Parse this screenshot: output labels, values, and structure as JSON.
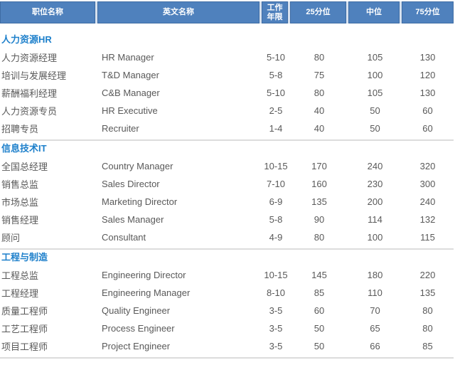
{
  "colors": {
    "header-bg": "#4F81BD",
    "header-border": "#3E6CA4",
    "header-gap": "#D6E1EF",
    "section-title": "#1E80CB",
    "body-text": "#595959",
    "divider": "#DCDCDC"
  },
  "header": {
    "columns": [
      "职位名称",
      "英文名称",
      "工作\n年限",
      "25分位",
      "中位",
      "75分位"
    ]
  },
  "sections": [
    {
      "title": "人力资源HR",
      "rows": [
        [
          "人力资源经理",
          "HR Manager",
          "5-10",
          "80",
          "105",
          "130"
        ],
        [
          "培训与发展经理",
          "T&D Manager",
          "5-8",
          "75",
          "100",
          "120"
        ],
        [
          "薪酬福利经理",
          "C&B Manager",
          "5-10",
          "80",
          "105",
          "130"
        ],
        [
          "人力资源专员",
          "HR Executive",
          "2-5",
          "40",
          "50",
          "60"
        ],
        [
          "招聘专员",
          "Recruiter",
          "1-4",
          "40",
          "50",
          "60"
        ]
      ]
    },
    {
      "title": "信息技术IT",
      "rows": [
        [
          "全国总经理",
          "Country Manager",
          "10-15",
          "170",
          "240",
          "320"
        ],
        [
          "销售总监",
          "Sales Director",
          "7-10",
          "160",
          "230",
          "300"
        ],
        [
          "市场总监",
          "Marketing Director",
          "6-9",
          "135",
          "200",
          "240"
        ],
        [
          "销售经理",
          "Sales Manager",
          "5-8",
          "90",
          "114",
          "132"
        ],
        [
          "顾问",
          "Consultant",
          "4-9",
          "80",
          "100",
          "115"
        ]
      ]
    },
    {
      "title": "工程与制造",
      "rows": [
        [
          "工程总监",
          "Engineering Director",
          "10-15",
          "145",
          "180",
          "220"
        ],
        [
          "工程经理",
          "Engineering Manager",
          "8-10",
          "85",
          "110",
          "135"
        ],
        [
          "质量工程师",
          "Quality Engineer",
          "3-5",
          "60",
          "70",
          "80"
        ],
        [
          "工艺工程师",
          "Process Engineer",
          "3-5",
          "50",
          "65",
          "80"
        ],
        [
          "项目工程师",
          "Project Engineer",
          "3-5",
          "50",
          "66",
          "85"
        ]
      ]
    }
  ]
}
